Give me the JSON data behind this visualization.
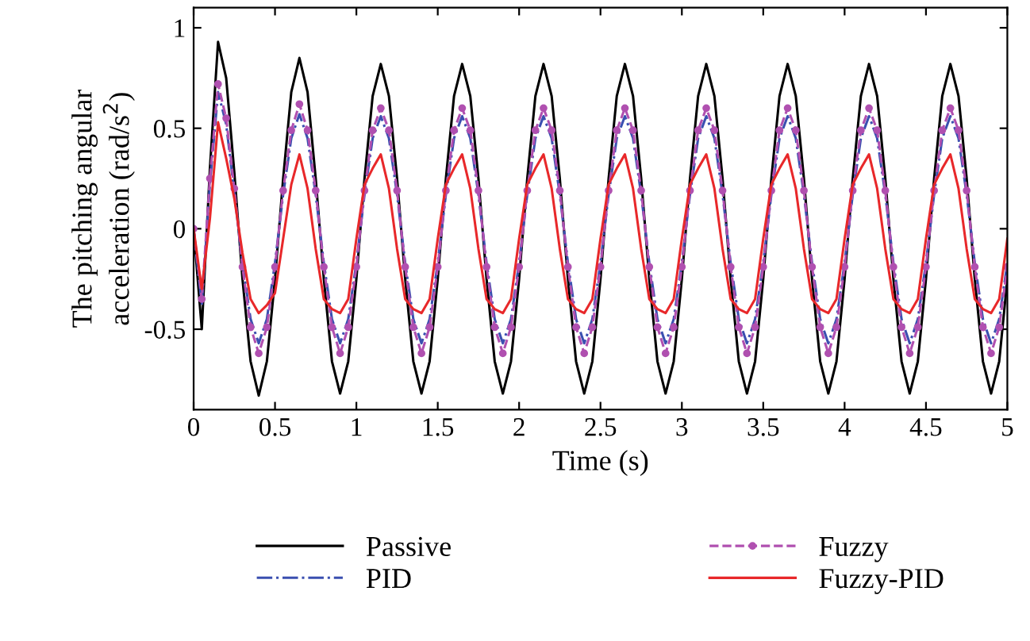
{
  "chart_data": {
    "type": "line",
    "xlabel": "Time (s)",
    "ylabel": "The pitching angular\nacceleration (rad/s$^{2}$)",
    "x": [
      0,
      0.05,
      0.1,
      0.15,
      0.2,
      0.25,
      0.3,
      0.35,
      0.4,
      0.45,
      0.5,
      0.55,
      0.6,
      0.65,
      0.7,
      0.75,
      0.8,
      0.85,
      0.9,
      0.95,
      1,
      1.05,
      1.1,
      1.15,
      1.2,
      1.25,
      1.3,
      1.35,
      1.4,
      1.45,
      1.5,
      1.55,
      1.6,
      1.65,
      1.7,
      1.75,
      1.8,
      1.85,
      1.9,
      1.95,
      2,
      2.05,
      2.1,
      2.15,
      2.2,
      2.25,
      2.3,
      2.35,
      2.4,
      2.45,
      2.5,
      2.55,
      2.6,
      2.65,
      2.7,
      2.75,
      2.8,
      2.85,
      2.9,
      2.95,
      3,
      3.05,
      3.1,
      3.15,
      3.2,
      3.25,
      3.3,
      3.35,
      3.4,
      3.45,
      3.5,
      3.55,
      3.6,
      3.65,
      3.7,
      3.75,
      3.8,
      3.85,
      3.9,
      3.95,
      4,
      4.05,
      4.1,
      4.15,
      4.2,
      4.25,
      4.3,
      4.35,
      4.4,
      4.45,
      4.5,
      4.55,
      4.6,
      4.65,
      4.7,
      4.75,
      4.8,
      4.85,
      4.9,
      4.95,
      5
    ],
    "series": [
      {
        "name": "Passive",
        "color": "#000000",
        "line_style": "solid",
        "marker": "none",
        "values": [
          0,
          -0.5,
          0.3,
          0.93,
          0.75,
          0.28,
          -0.25,
          -0.66,
          -0.83,
          -0.66,
          -0.25,
          0.25,
          0.68,
          0.85,
          0.68,
          0.25,
          -0.25,
          -0.66,
          -0.82,
          -0.66,
          -0.25,
          0.25,
          0.66,
          0.82,
          0.66,
          0.25,
          -0.25,
          -0.66,
          -0.82,
          -0.66,
          -0.25,
          0.25,
          0.66,
          0.82,
          0.66,
          0.25,
          -0.25,
          -0.66,
          -0.82,
          -0.66,
          -0.25,
          0.25,
          0.66,
          0.82,
          0.66,
          0.25,
          -0.25,
          -0.66,
          -0.82,
          -0.66,
          -0.25,
          0.25,
          0.66,
          0.82,
          0.66,
          0.25,
          -0.25,
          -0.66,
          -0.82,
          -0.66,
          -0.25,
          0.25,
          0.66,
          0.82,
          0.66,
          0.25,
          -0.25,
          -0.66,
          -0.82,
          -0.66,
          -0.25,
          0.25,
          0.66,
          0.82,
          0.66,
          0.25,
          -0.25,
          -0.66,
          -0.82,
          -0.66,
          -0.25,
          0.25,
          0.66,
          0.82,
          0.66,
          0.25,
          -0.25,
          -0.66,
          -0.82,
          -0.66,
          -0.25,
          0.25,
          0.66,
          0.82,
          0.66,
          0.25,
          -0.25,
          -0.66,
          -0.82,
          -0.66,
          -0.25
        ]
      },
      {
        "name": "PID",
        "color": "#3a4fb0",
        "line_style": "dashdot",
        "marker": "none",
        "values": [
          0,
          -0.38,
          0.22,
          0.68,
          0.52,
          0.18,
          -0.17,
          -0.45,
          -0.57,
          -0.45,
          -0.17,
          0.17,
          0.45,
          0.57,
          0.45,
          0.17,
          -0.17,
          -0.45,
          -0.57,
          -0.45,
          -0.17,
          0.17,
          0.45,
          0.56,
          0.45,
          0.17,
          -0.17,
          -0.45,
          -0.57,
          -0.45,
          -0.17,
          0.17,
          0.45,
          0.56,
          0.45,
          0.17,
          -0.17,
          -0.45,
          -0.57,
          -0.45,
          -0.17,
          0.17,
          0.45,
          0.56,
          0.45,
          0.17,
          -0.17,
          -0.45,
          -0.57,
          -0.45,
          -0.17,
          0.17,
          0.45,
          0.56,
          0.45,
          0.17,
          -0.17,
          -0.45,
          -0.57,
          -0.45,
          -0.17,
          0.17,
          0.45,
          0.56,
          0.45,
          0.17,
          -0.17,
          -0.45,
          -0.57,
          -0.45,
          -0.17,
          0.17,
          0.45,
          0.56,
          0.45,
          0.17,
          -0.17,
          -0.45,
          -0.57,
          -0.45,
          -0.17,
          0.17,
          0.45,
          0.56,
          0.45,
          0.17,
          -0.17,
          -0.45,
          -0.57,
          -0.45,
          -0.17,
          0.17,
          0.45,
          0.56,
          0.45,
          0.17,
          -0.17,
          -0.45,
          -0.57,
          -0.45,
          -0.17
        ]
      },
      {
        "name": "Fuzzy",
        "color": "#b050b0",
        "line_style": "dashed",
        "marker": "circle",
        "values": [
          0,
          -0.35,
          0.25,
          0.72,
          0.55,
          0.2,
          -0.19,
          -0.49,
          -0.62,
          -0.49,
          -0.19,
          0.19,
          0.49,
          0.62,
          0.49,
          0.19,
          -0.19,
          -0.49,
          -0.62,
          -0.49,
          -0.19,
          0.19,
          0.49,
          0.6,
          0.49,
          0.19,
          -0.19,
          -0.49,
          -0.62,
          -0.49,
          -0.19,
          0.19,
          0.49,
          0.6,
          0.49,
          0.19,
          -0.19,
          -0.49,
          -0.62,
          -0.49,
          -0.19,
          0.19,
          0.49,
          0.6,
          0.49,
          0.19,
          -0.19,
          -0.49,
          -0.62,
          -0.49,
          -0.19,
          0.19,
          0.49,
          0.6,
          0.49,
          0.19,
          -0.19,
          -0.49,
          -0.62,
          -0.49,
          -0.19,
          0.19,
          0.49,
          0.6,
          0.49,
          0.19,
          -0.19,
          -0.49,
          -0.62,
          -0.49,
          -0.19,
          0.19,
          0.49,
          0.6,
          0.49,
          0.19,
          -0.19,
          -0.49,
          -0.62,
          -0.49,
          -0.19,
          0.19,
          0.49,
          0.6,
          0.49,
          0.19,
          -0.19,
          -0.49,
          -0.62,
          -0.49,
          -0.19,
          0.19,
          0.49,
          0.6,
          0.49,
          0.19,
          -0.19,
          -0.49,
          -0.62,
          -0.49,
          -0.19
        ]
      },
      {
        "name": "Fuzzy-PID",
        "color": "#e8282a",
        "line_style": "solid",
        "marker": "none",
        "values": [
          0,
          -0.3,
          0.05,
          0.53,
          0.35,
          0.15,
          -0.12,
          -0.35,
          -0.42,
          -0.38,
          -0.32,
          -0.05,
          0.22,
          0.37,
          0.2,
          -0.1,
          -0.35,
          -0.4,
          -0.42,
          -0.35,
          -0.05,
          0.22,
          0.3,
          0.37,
          0.2,
          -0.1,
          -0.35,
          -0.4,
          -0.42,
          -0.35,
          -0.05,
          0.22,
          0.3,
          0.37,
          0.2,
          -0.1,
          -0.35,
          -0.4,
          -0.42,
          -0.35,
          -0.05,
          0.22,
          0.3,
          0.37,
          0.2,
          -0.1,
          -0.35,
          -0.4,
          -0.42,
          -0.35,
          -0.05,
          0.22,
          0.3,
          0.37,
          0.2,
          -0.1,
          -0.35,
          -0.4,
          -0.42,
          -0.35,
          -0.05,
          0.22,
          0.3,
          0.37,
          0.2,
          -0.1,
          -0.35,
          -0.4,
          -0.42,
          -0.35,
          -0.05,
          0.22,
          0.3,
          0.37,
          0.2,
          -0.1,
          -0.35,
          -0.4,
          -0.42,
          -0.35,
          -0.05,
          0.22,
          0.3,
          0.37,
          0.2,
          -0.1,
          -0.35,
          -0.4,
          -0.42,
          -0.35,
          -0.05,
          0.22,
          0.3,
          0.37,
          0.2,
          -0.1,
          -0.35,
          -0.4,
          -0.42,
          -0.35,
          -0.05
        ]
      }
    ],
    "xlim": [
      0,
      5
    ],
    "xticks": [
      0,
      0.5,
      1,
      1.5,
      2,
      2.5,
      3,
      3.5,
      4,
      4.5,
      5
    ],
    "ylim": [
      -0.9,
      1.1
    ],
    "yticks": [
      -0.5,
      0,
      0.5,
      1
    ],
    "grid": false,
    "legend": "bottom"
  }
}
